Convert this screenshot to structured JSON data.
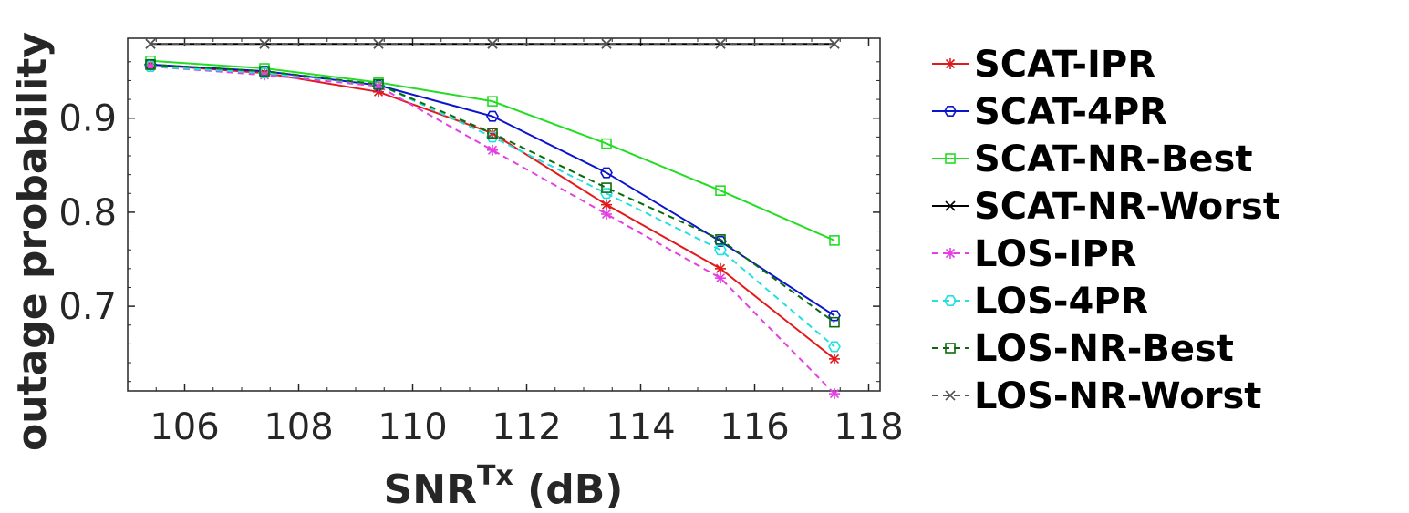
{
  "chart_data": {
    "type": "line",
    "title": "",
    "xlabel_main": "SNR",
    "xlabel_sup": "Tx",
    "xlabel_suffix": " (dB)",
    "ylabel": "outage probability",
    "xlim": [
      105,
      118.2
    ],
    "ylim": [
      0.61,
      0.985
    ],
    "xticks": [
      106,
      108,
      110,
      112,
      114,
      116,
      118
    ],
    "yticks": [
      0.7,
      0.8,
      0.9
    ],
    "ytick_labels": [
      "0.7",
      "0.8",
      "0.9"
    ],
    "grid": false,
    "legend_position": "outside-right",
    "x": [
      105.4,
      107.4,
      109.4,
      111.4,
      113.4,
      115.4,
      117.4
    ],
    "series": [
      {
        "name": "SCAT-IPR",
        "color": "#e31a1c",
        "marker": "asterisk",
        "dash": "solid",
        "values": [
          0.957,
          0.948,
          0.928,
          0.884,
          0.808,
          0.74,
          0.644
        ]
      },
      {
        "name": "SCAT-4PR",
        "color": "#0a14cc",
        "marker": "hexagon",
        "dash": "solid",
        "values": [
          0.957,
          0.95,
          0.935,
          0.902,
          0.842,
          0.769,
          0.69
        ]
      },
      {
        "name": "SCAT-NR-Best",
        "color": "#22dd22",
        "marker": "square",
        "dash": "solid",
        "values": [
          0.961,
          0.953,
          0.938,
          0.918,
          0.873,
          0.823,
          0.77
        ]
      },
      {
        "name": "SCAT-NR-Worst",
        "color": "#000000",
        "marker": "x",
        "dash": "solid",
        "values": [
          0.979,
          0.979,
          0.979,
          0.979,
          0.979,
          0.979,
          0.979
        ]
      },
      {
        "name": "LOS-IPR",
        "color": "#e43ee4",
        "marker": "asterisk",
        "dash": "dashed",
        "values": [
          0.955,
          0.946,
          0.934,
          0.866,
          0.798,
          0.73,
          0.607
        ]
      },
      {
        "name": "LOS-4PR",
        "color": "#22e0e0",
        "marker": "hexagon",
        "dash": "dashed",
        "values": [
          0.955,
          0.948,
          0.936,
          0.88,
          0.82,
          0.76,
          0.657
        ]
      },
      {
        "name": "LOS-NR-Best",
        "color": "#0b6b0b",
        "marker": "square",
        "dash": "dashed",
        "values": [
          0.957,
          0.95,
          0.936,
          0.884,
          0.826,
          0.771,
          0.683
        ]
      },
      {
        "name": "LOS-NR-Worst",
        "color": "#555555",
        "marker": "x",
        "dash": "dashed",
        "values": [
          0.979,
          0.979,
          0.979,
          0.979,
          0.979,
          0.979,
          0.979
        ]
      }
    ]
  }
}
